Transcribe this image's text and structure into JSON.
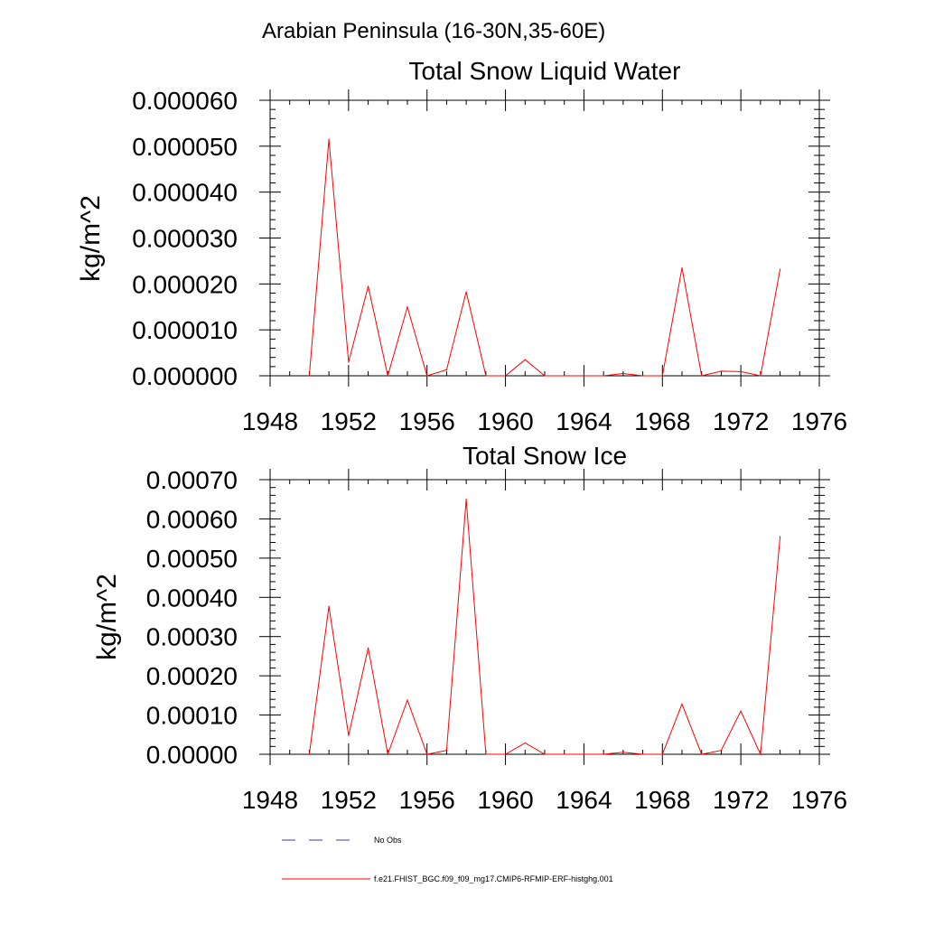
{
  "figure": {
    "main_title": "Arabian Peninsula (16-30N,35-60E)"
  },
  "legend": {
    "items": [
      {
        "label": "No Obs",
        "color": "#3b3b8f",
        "dash": "dashed"
      },
      {
        "label": "f.e21.FHIST_BGC.f09_f09_mg17.CMIP6-RFMIP-ERF-histghg.001",
        "color": "#ff0000",
        "dash": "solid"
      }
    ]
  },
  "chart_data": [
    {
      "type": "line",
      "title": "Total Snow Liquid Water",
      "xlabel": "",
      "ylabel": "kg/m^2",
      "xlim": [
        1948,
        1976
      ],
      "ylim": [
        0,
        6e-05
      ],
      "x_ticks": [
        1948,
        1952,
        1956,
        1960,
        1964,
        1968,
        1972,
        1976
      ],
      "y_ticks": [
        0,
        1e-05,
        2e-05,
        3e-05,
        4e-05,
        5e-05,
        6e-05
      ],
      "y_tick_labels": [
        "0.000000",
        "0.000010",
        "0.000020",
        "0.000030",
        "0.000040",
        "0.000050",
        "0.000060"
      ],
      "series": [
        {
          "name": "f.e21.FHIST_BGC.f09_f09_mg17.CMIP6-RFMIP-ERF-histghg.001",
          "color": "#ff0000",
          "x": [
            1950,
            1951,
            1952,
            1953,
            1954,
            1955,
            1956,
            1957,
            1958,
            1959,
            1960,
            1961,
            1962,
            1963,
            1964,
            1965,
            1966,
            1967,
            1968,
            1969,
            1970,
            1971,
            1972,
            1973,
            1974
          ],
          "values": [
            0,
            5.15e-05,
            3e-06,
            1.95e-05,
            0,
            1.5e-05,
            0,
            1.3e-06,
            1.83e-05,
            0,
            0,
            3.5e-06,
            0,
            0,
            0,
            0,
            5e-07,
            0,
            0,
            2.35e-05,
            0,
            1e-06,
            9e-07,
            0,
            2.32e-05
          ]
        }
      ]
    },
    {
      "type": "line",
      "title": "Total Snow Ice",
      "xlabel": "",
      "ylabel": "kg/m^2",
      "xlim": [
        1948,
        1976
      ],
      "ylim": [
        0,
        0.0007
      ],
      "x_ticks": [
        1948,
        1952,
        1956,
        1960,
        1964,
        1968,
        1972,
        1976
      ],
      "y_ticks": [
        0,
        0.0001,
        0.0002,
        0.0003,
        0.0004,
        0.0005,
        0.0006,
        0.0007
      ],
      "y_tick_labels": [
        "0.00000",
        "0.00010",
        "0.00020",
        "0.00030",
        "0.00040",
        "0.00050",
        "0.00060",
        "0.00070"
      ],
      "series": [
        {
          "name": "f.e21.FHIST_BGC.f09_f09_mg17.CMIP6-RFMIP-ERF-histghg.001",
          "color": "#ff0000",
          "x": [
            1950,
            1951,
            1952,
            1953,
            1954,
            1955,
            1956,
            1957,
            1958,
            1959,
            1960,
            1961,
            1962,
            1963,
            1964,
            1965,
            1966,
            1967,
            1968,
            1969,
            1970,
            1971,
            1972,
            1973,
            1974
          ],
          "values": [
            0,
            0.000377,
            4.8e-05,
            0.000271,
            0,
            0.000138,
            0,
            1e-05,
            0.00065,
            0,
            0,
            2.9e-05,
            0,
            0,
            0,
            0,
            5e-06,
            0,
            0,
            0.000128,
            0,
            1e-05,
            0.00011,
            0,
            0.000555
          ]
        }
      ]
    }
  ]
}
